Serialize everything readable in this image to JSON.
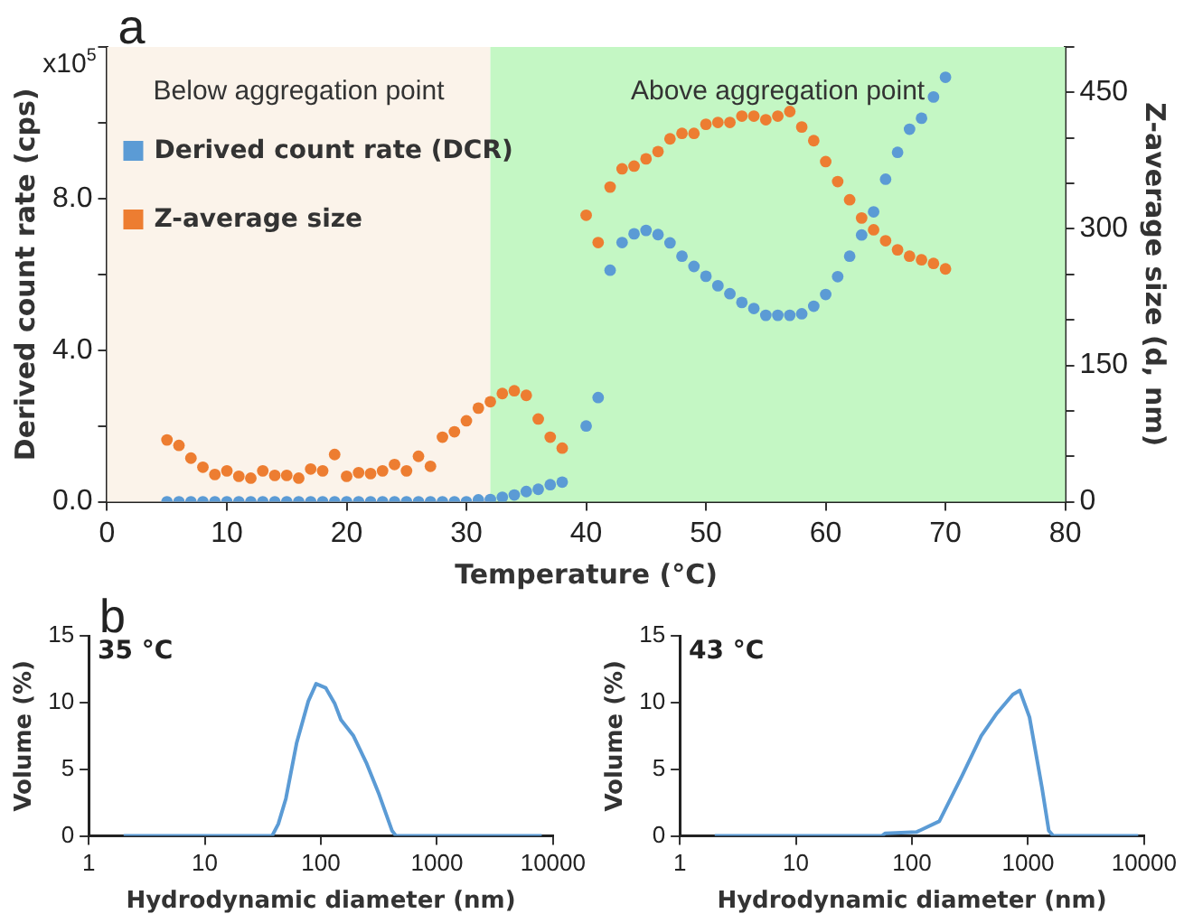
{
  "chart_data": [
    {
      "type": "scatter",
      "xlabel": "Temperature (°C)",
      "ylabel": "Derived count rate (cps)",
      "y2label": "Z-average size (d, nm)",
      "xlim": [
        0,
        80
      ],
      "xticks": [
        0,
        10,
        20,
        30,
        40,
        50,
        60,
        70,
        80
      ],
      "ylim": [
        0,
        12
      ],
      "yticks": [
        {
          "value": 0,
          "label": "0.0"
        },
        {
          "value": 2,
          "label": null
        },
        {
          "value": 4,
          "label": "4.0"
        },
        {
          "value": 6,
          "label": null
        },
        {
          "value": 8,
          "label": "8.0"
        },
        {
          "value": 10,
          "label": null
        },
        {
          "value": 12,
          "label": null
        }
      ],
      "y2lim": [
        0,
        500
      ],
      "y2ticks": [
        0,
        {
          "value": 50,
          "label": null
        },
        {
          "value": 100,
          "label": null
        },
        150,
        {
          "value": 200,
          "label": null
        },
        {
          "value": 250,
          "label": null
        },
        300,
        {
          "value": 350,
          "label": null
        },
        {
          "value": 400,
          "label": null
        },
        450,
        {
          "value": 500,
          "label": null
        }
      ],
      "bands": [
        {
          "axis": "x",
          "from": 0,
          "to": 32,
          "label": "Below aggregation point",
          "color": "#fbf3ea"
        },
        {
          "axis": "x",
          "from": 32,
          "to": 80,
          "label": "Above aggregation point",
          "color": "#c4f7c4"
        }
      ],
      "annotations": [
        "a",
        "x10$^{5}$"
      ],
      "legend": "top left",
      "marker": "circle",
      "grid": false,
      "series": [
        {
          "name": "Derived count rate (DCR)",
          "color": "#5b9bd5",
          "x": [
            5,
            6,
            7,
            8,
            9,
            10,
            11,
            12,
            13,
            14,
            15,
            16,
            17,
            18,
            19,
            20,
            21,
            22,
            23,
            24,
            25,
            26,
            27,
            28,
            29,
            30,
            31,
            32,
            33,
            34,
            35,
            36,
            37,
            38,
            40,
            41,
            42,
            43,
            44,
            45,
            46,
            47,
            48,
            49,
            50,
            51,
            52,
            53,
            54,
            55,
            56,
            57,
            58,
            59,
            60,
            61,
            62,
            63,
            64,
            65,
            66,
            67,
            68,
            69,
            70
          ],
          "values": [
            0,
            0,
            0,
            0,
            0,
            0,
            0,
            0,
            0,
            0,
            0,
            0,
            0,
            0,
            0,
            0,
            0,
            0,
            0,
            0,
            0,
            0,
            0,
            0,
            0,
            0,
            0.05,
            0.06,
            0.12,
            0.18,
            0.27,
            0.33,
            0.45,
            0.52,
            2.0,
            2.75,
            6.11,
            6.84,
            7.07,
            7.16,
            7.05,
            6.83,
            6.48,
            6.21,
            5.95,
            5.7,
            5.49,
            5.26,
            5.1,
            4.92,
            4.92,
            4.92,
            4.96,
            5.16,
            5.47,
            5.94,
            6.48,
            7.04,
            7.65,
            8.51,
            9.22,
            9.83,
            10.12,
            10.68,
            11.2
          ]
        },
        {
          "name": "Z-average size",
          "color": "#ed7d31",
          "axis": "y2",
          "x": [
            5,
            6,
            7,
            8,
            9,
            10,
            11,
            12,
            13,
            14,
            15,
            16,
            17,
            18,
            19,
            20,
            21,
            22,
            23,
            24,
            25,
            26,
            27,
            28,
            29,
            30,
            31,
            32,
            33,
            34,
            35,
            36,
            37,
            38,
            40,
            41,
            42,
            43,
            44,
            45,
            46,
            47,
            48,
            49,
            50,
            51,
            52,
            53,
            54,
            55,
            56,
            57,
            58,
            59,
            60,
            61,
            62,
            63,
            64,
            65,
            66,
            67,
            68,
            69,
            70
          ],
          "values": [
            68,
            62,
            48,
            38,
            30,
            34,
            28,
            26,
            34,
            29,
            29,
            26,
            36,
            34,
            52,
            28,
            32,
            31,
            34,
            41,
            34,
            50,
            39,
            71,
            77,
            89,
            103,
            110,
            119,
            122,
            117,
            91,
            71,
            59,
            315,
            285,
            346,
            366,
            369,
            377,
            385,
            399,
            405,
            405,
            415,
            417,
            417,
            424,
            424,
            420,
            424,
            429,
            412,
            397,
            374,
            352,
            332,
            312,
            299,
            287,
            277,
            270,
            266,
            262,
            256
          ]
        }
      ]
    },
    {
      "type": "line",
      "title": "35 °C",
      "xlabel": "Hydrodynamic diameter (nm)",
      "ylabel": "Volume (%)",
      "log": "x",
      "xlim": [
        1,
        10000
      ],
      "xticks": [
        1,
        10,
        100,
        1000,
        10000
      ],
      "ylim": [
        0,
        15
      ],
      "yticks": [
        0,
        5,
        10,
        15
      ],
      "annotations": [
        "b"
      ],
      "marker": "none",
      "grid": false,
      "series": [
        {
          "color": "#5b9bd5",
          "x": [
            2,
            38,
            43,
            50,
            62,
            78,
            91,
            110,
            132,
            149,
            191,
            246,
            318,
            410,
            445,
            8000
          ],
          "values": [
            0,
            0,
            0.9,
            2.8,
            7.0,
            10.1,
            11.4,
            11.1,
            9.9,
            8.7,
            7.5,
            5.5,
            3.1,
            0.4,
            0,
            0
          ]
        }
      ]
    },
    {
      "type": "line",
      "title": "43 °C",
      "xlabel": "Hydrodynamic diameter (nm)",
      "ylabel": "Volume (%)",
      "log": "x",
      "xlim": [
        1,
        10000
      ],
      "xticks": [
        1,
        10,
        100,
        1000,
        10000
      ],
      "ylim": [
        0,
        15
      ],
      "yticks": [
        0,
        5,
        10,
        15
      ],
      "marker": "none",
      "grid": false,
      "series": [
        {
          "color": "#5b9bd5",
          "x": [
            2,
            55,
            59,
            110,
            172,
            270,
            395,
            540,
            740,
            850,
            1030,
            1320,
            1510,
            1650,
            8900
          ],
          "values": [
            0,
            0,
            0.2,
            0.3,
            1.1,
            4.5,
            7.5,
            9.2,
            10.6,
            10.9,
            8.9,
            3.6,
            0.4,
            0,
            0
          ]
        }
      ]
    }
  ]
}
